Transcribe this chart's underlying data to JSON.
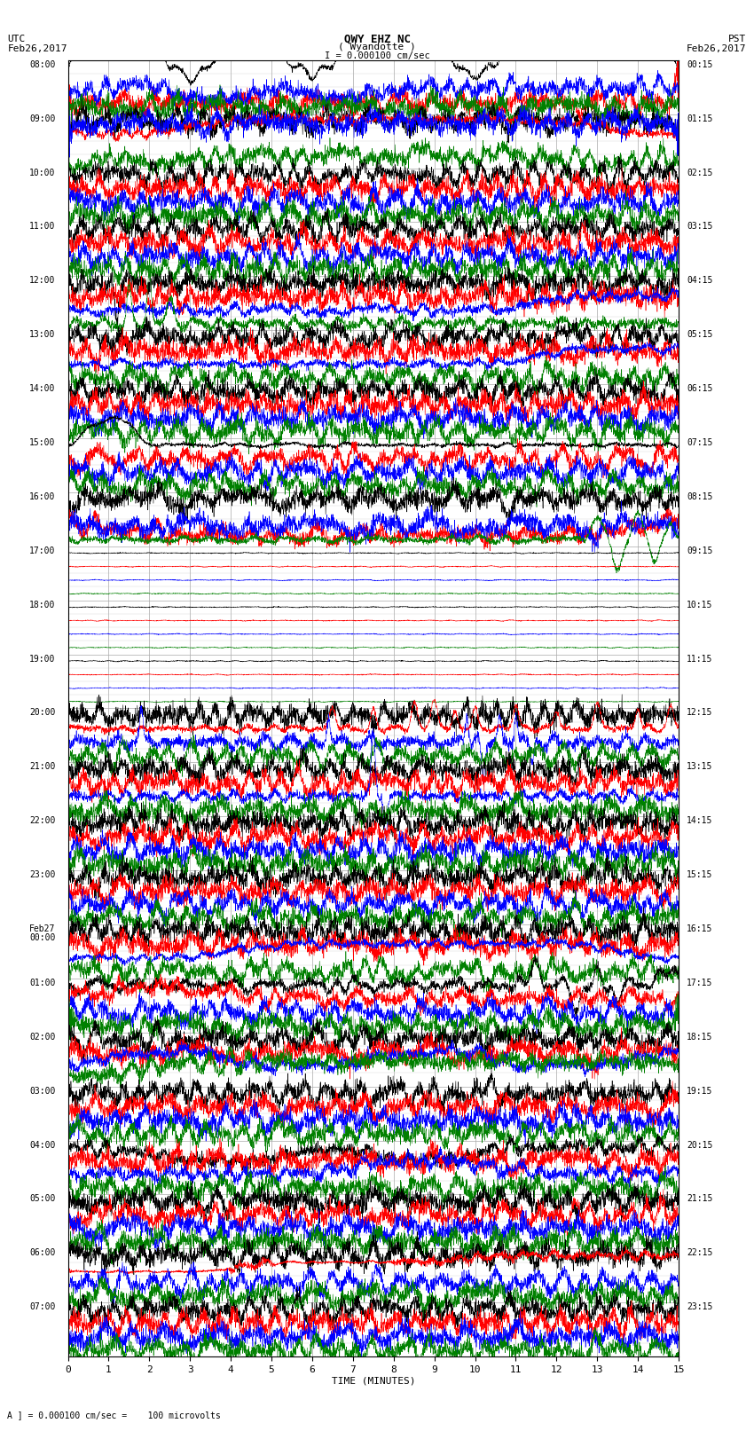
{
  "title_line1": "QWY EHZ NC",
  "title_line2": "( Wyandotte )",
  "scale_label": "I = 0.000100 cm/sec",
  "left_label_top": "UTC",
  "left_label_date": "Feb26,2017",
  "right_label_top": "PST",
  "right_label_date": "Feb26,2017",
  "xlabel": "TIME (MINUTES)",
  "bottom_note": "A ] = 0.000100 cm/sec =    100 microvolts",
  "xmin": 0,
  "xmax": 15,
  "xticks": [
    0,
    1,
    2,
    3,
    4,
    5,
    6,
    7,
    8,
    9,
    10,
    11,
    12,
    13,
    14,
    15
  ],
  "background_color": "#ffffff",
  "grid_color": "#aaaaaa",
  "fig_width": 8.5,
  "fig_height": 16.13,
  "dpi": 100,
  "num_hours": 24,
  "traces_per_hour": 4,
  "utc_hour_labels": [
    "08:00",
    "09:00",
    "10:00",
    "11:00",
    "12:00",
    "13:00",
    "14:00",
    "15:00",
    "16:00",
    "17:00",
    "18:00",
    "19:00",
    "20:00",
    "21:00",
    "22:00",
    "23:00",
    "Feb27\n00:00",
    "01:00",
    "02:00",
    "03:00",
    "04:00",
    "05:00",
    "06:00",
    "07:00"
  ],
  "pst_hour_labels": [
    "00:15",
    "01:15",
    "02:15",
    "03:15",
    "04:15",
    "05:15",
    "06:15",
    "07:15",
    "08:15",
    "09:15",
    "10:15",
    "11:15",
    "12:15",
    "13:15",
    "14:15",
    "15:15",
    "16:15",
    "17:15",
    "18:15",
    "19:15",
    "20:15",
    "21:15",
    "22:15",
    "23:15"
  ],
  "colors": [
    "black",
    "red",
    "blue",
    "green"
  ]
}
